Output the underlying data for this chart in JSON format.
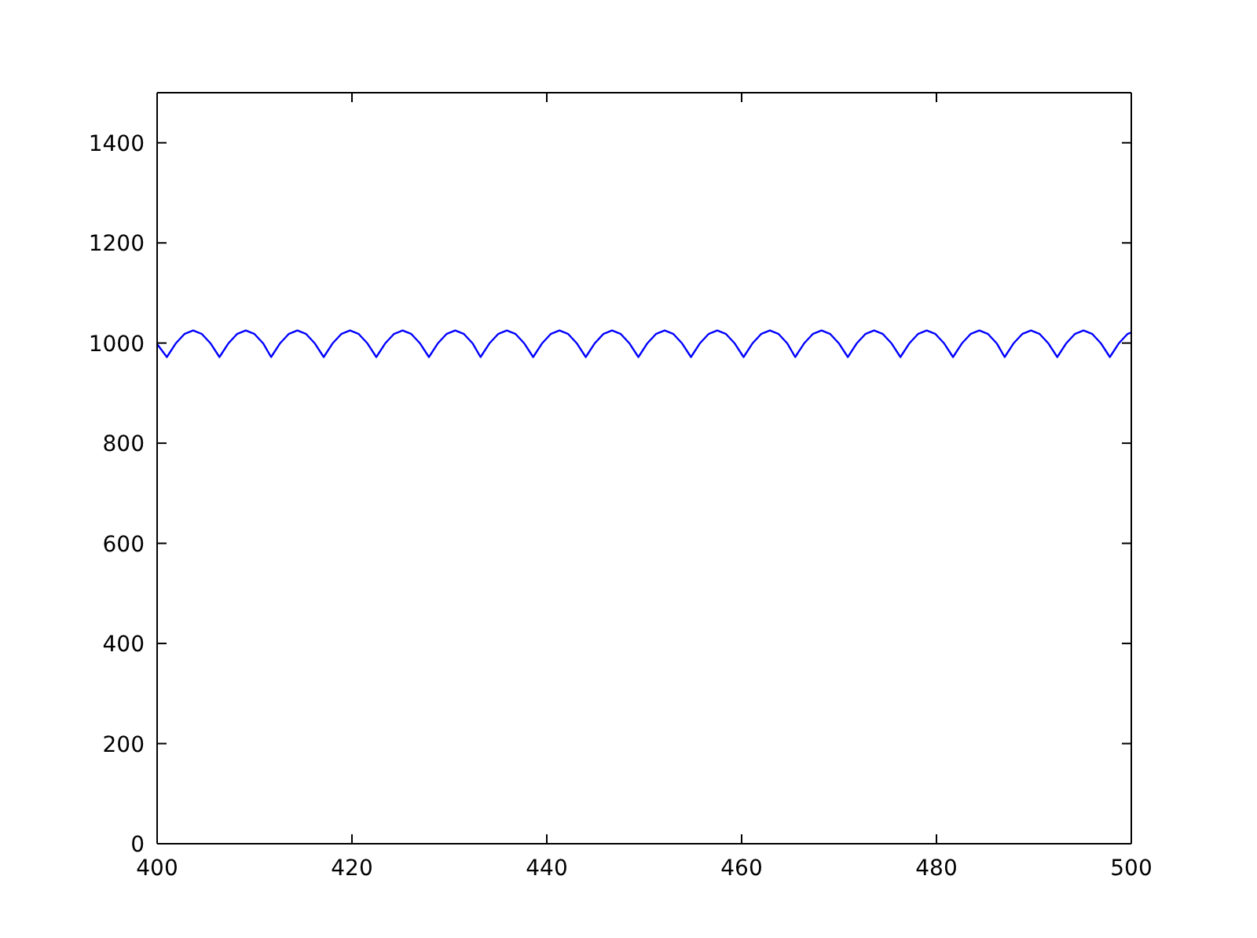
{
  "chart_data": {
    "type": "line",
    "x": [
      400.0,
      401.0,
      401.9,
      402.8,
      403.7,
      404.6,
      405.5,
      406.4,
      407.3,
      408.2,
      409.1,
      410.0,
      410.9,
      411.7,
      412.6,
      413.5,
      414.4,
      415.3,
      416.2,
      417.1,
      418.0,
      418.9,
      419.8,
      420.7,
      421.6,
      422.5,
      423.4,
      424.3,
      425.2,
      426.1,
      427.0,
      427.9,
      428.8,
      429.7,
      430.6,
      431.5,
      432.4,
      433.2,
      434.1,
      435.0,
      435.9,
      436.8,
      437.7,
      438.6,
      439.5,
      440.4,
      441.3,
      442.2,
      443.1,
      444.0,
      444.9,
      445.8,
      446.7,
      447.6,
      448.5,
      449.4,
      450.3,
      451.2,
      452.1,
      453.0,
      453.9,
      454.8,
      455.7,
      456.6,
      457.5,
      458.4,
      459.3,
      460.2,
      461.1,
      462.0,
      462.9,
      463.8,
      464.7,
      465.5,
      466.4,
      467.3,
      468.2,
      469.1,
      470.0,
      470.9,
      471.8,
      472.7,
      473.6,
      474.5,
      475.4,
      476.3,
      477.2,
      478.1,
      479.0,
      479.9,
      480.8,
      481.7,
      482.6,
      483.5,
      484.4,
      485.3,
      486.2,
      487.0,
      487.9,
      488.8,
      489.7,
      490.6,
      491.5,
      492.4,
      493.3,
      494.2,
      495.1,
      496.0,
      496.9,
      497.8,
      498.7,
      499.6,
      500.0
    ],
    "series": [
      {
        "color": "#0000ff",
        "values": [
          998,
          972,
          999,
          1018,
          1025,
          1018,
          999,
          972,
          999,
          1018,
          1025,
          1018,
          999,
          972,
          999,
          1018,
          1025,
          1018,
          999,
          972,
          999,
          1018,
          1025,
          1018,
          999,
          972,
          999,
          1018,
          1025,
          1018,
          999,
          972,
          999,
          1018,
          1025,
          1018,
          999,
          972,
          999,
          1018,
          1025,
          1018,
          999,
          972,
          999,
          1018,
          1025,
          1018,
          999,
          972,
          999,
          1018,
          1025,
          1018,
          999,
          972,
          999,
          1018,
          1025,
          1018,
          999,
          972,
          999,
          1018,
          1025,
          1018,
          999,
          972,
          999,
          1018,
          1025,
          1018,
          999,
          972,
          999,
          1018,
          1025,
          1018,
          999,
          972,
          999,
          1018,
          1025,
          1018,
          999,
          972,
          999,
          1018,
          1025,
          1018,
          999,
          972,
          999,
          1018,
          1025,
          1018,
          999,
          972,
          999,
          1018,
          1025,
          1018,
          999,
          972,
          999,
          1018,
          1025,
          1018,
          999,
          972,
          999,
          1018,
          1021
        ]
      }
    ],
    "xlim": [
      400,
      500
    ],
    "xticks": [
      400,
      420,
      440,
      460,
      480,
      500
    ],
    "ylim": [
      0,
      1500
    ],
    "yticks": [
      0,
      200,
      400,
      600,
      800,
      1000,
      1200,
      1400
    ],
    "grid": false,
    "marker": "none",
    "line_style": "solid"
  }
}
